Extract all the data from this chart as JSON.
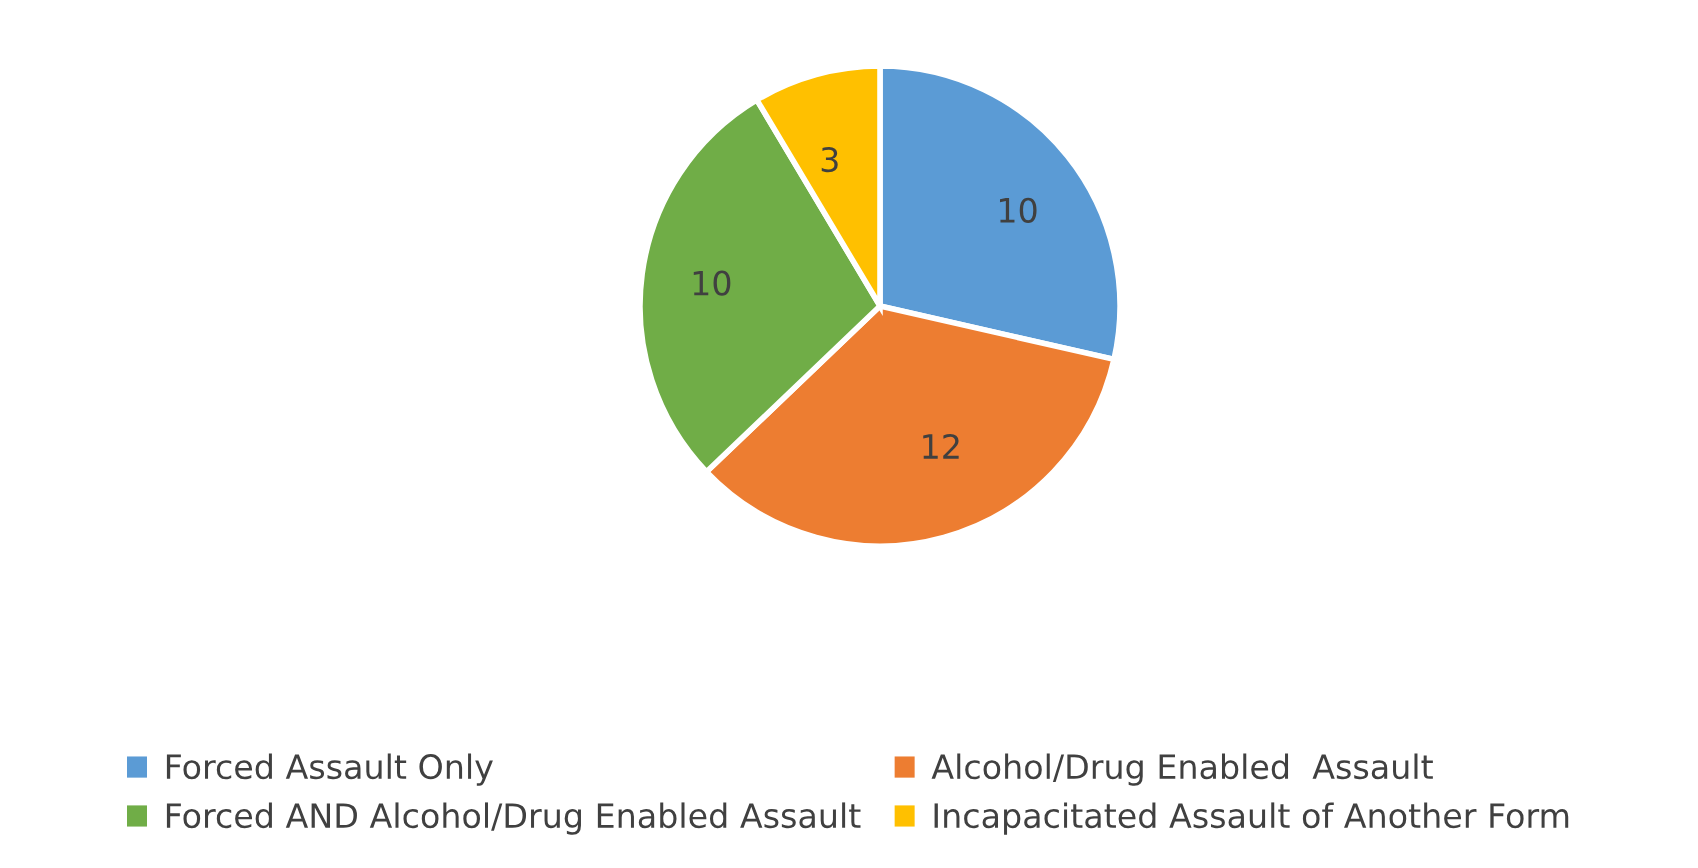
{
  "chart_data": {
    "type": "pie",
    "categories": [
      "Forced Assault Only",
      "Alcohol/Drug Enabled  Assault",
      "Forced AND Alcohol/Drug Enabled Assault",
      "Incapacitated Assault of Another Form"
    ],
    "values": [
      10,
      12,
      10,
      3
    ],
    "colors": [
      "#5b9bd5",
      "#ed7d31",
      "#70ad47",
      "#ffc000"
    ],
    "data_labels": true,
    "legend": "bottom"
  }
}
